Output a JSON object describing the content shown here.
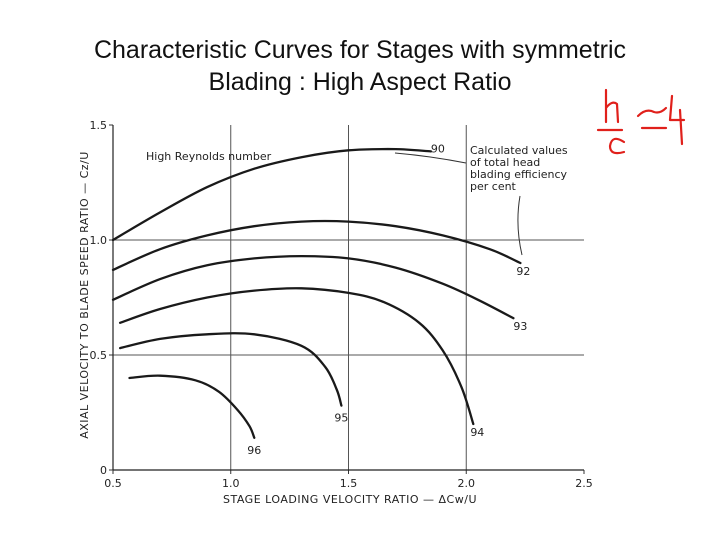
{
  "slide": {
    "title_line1": "Characteristic Curves for Stages with symmetric",
    "title_line2": "Blading : High Aspect Ratio",
    "handwritten_note": "h/c ≈ 4",
    "handwritten_color": "#e0201b"
  },
  "chart_data": {
    "type": "line",
    "xlabel": "STAGE LOADING VELOCITY RATIO — ΔCw/U",
    "ylabel": "AXIAL VELOCITY TO BLADE SPEED RATIO — Cz/U",
    "xlim": [
      0.5,
      2.5
    ],
    "ylim": [
      0,
      1.5
    ],
    "x_ticks": [
      "0.5",
      "1.0",
      "1.5",
      "2.0",
      "2.5"
    ],
    "y_ticks": [
      "0",
      "0.5",
      "1.0",
      "1.5"
    ],
    "grid": true,
    "annotations": {
      "reynolds": "High Reynolds number",
      "calc_line1": "Calculated values",
      "calc_line2": "of total head",
      "calc_line3": "blading efficiency",
      "calc_line4": "per cent"
    },
    "series": [
      {
        "name": "90",
        "x": [
          0.5,
          0.7,
          0.9,
          1.1,
          1.3,
          1.5,
          1.7,
          1.85
        ],
        "y": [
          1.0,
          1.12,
          1.23,
          1.31,
          1.36,
          1.39,
          1.395,
          1.385
        ]
      },
      {
        "name": "92",
        "x": [
          0.5,
          0.7,
          0.9,
          1.1,
          1.3,
          1.5,
          1.7,
          1.9,
          2.1,
          2.23
        ],
        "y": [
          0.87,
          0.96,
          1.02,
          1.06,
          1.08,
          1.08,
          1.06,
          1.02,
          0.96,
          0.9
        ]
      },
      {
        "name": "93",
        "x": [
          0.5,
          0.7,
          0.9,
          1.1,
          1.3,
          1.5,
          1.7,
          1.9,
          2.05,
          2.2
        ],
        "y": [
          0.74,
          0.83,
          0.89,
          0.92,
          0.93,
          0.92,
          0.88,
          0.81,
          0.74,
          0.66
        ]
      },
      {
        "name": "94",
        "x": [
          0.53,
          0.7,
          0.9,
          1.1,
          1.3,
          1.5,
          1.65,
          1.8,
          1.9,
          1.98,
          2.03
        ],
        "y": [
          0.64,
          0.7,
          0.75,
          0.78,
          0.79,
          0.77,
          0.73,
          0.64,
          0.52,
          0.36,
          0.2
        ]
      },
      {
        "name": "95",
        "x": [
          0.53,
          0.7,
          0.9,
          1.1,
          1.3,
          1.4,
          1.45,
          1.47
        ],
        "y": [
          0.53,
          0.57,
          0.59,
          0.59,
          0.54,
          0.45,
          0.35,
          0.28
        ]
      },
      {
        "name": "96",
        "x": [
          0.57,
          0.7,
          0.85,
          0.95,
          1.03,
          1.08,
          1.1
        ],
        "y": [
          0.4,
          0.41,
          0.39,
          0.34,
          0.26,
          0.19,
          0.14
        ]
      }
    ]
  }
}
